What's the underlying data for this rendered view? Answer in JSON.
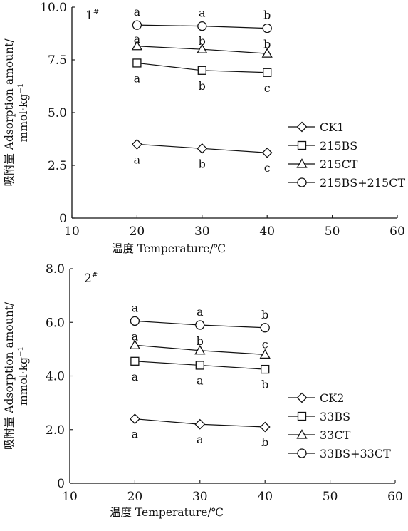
{
  "chart_data": [
    {
      "type": "line",
      "panel_label": "1",
      "panel_sup": "#",
      "xlabel": "温度 Temperature/℃",
      "ylabel_line1": "吸附量 Adsorption amount/",
      "ylabel_line2_base": "mmol·kg",
      "ylabel_line2_sup": "−1",
      "xlim": [
        10,
        60
      ],
      "ylim": [
        0,
        10
      ],
      "xticks": [
        10,
        20,
        30,
        40,
        50,
        60
      ],
      "xtick_labels": [
        "10",
        "20",
        "30",
        "40",
        "50",
        "60"
      ],
      "yticks": [
        0,
        2.5,
        5,
        7.5,
        10
      ],
      "ytick_labels": [
        "0",
        "2.5",
        "5.0",
        "7.5",
        "10.0"
      ],
      "x": [
        20,
        30,
        40
      ],
      "series": [
        {
          "name": "CK1",
          "marker": "diamond",
          "values": [
            3.5,
            3.3,
            3.1
          ],
          "letters": [
            "a",
            "b",
            "c"
          ],
          "letter_pos": "below"
        },
        {
          "name": "215BS",
          "marker": "square",
          "values": [
            7.35,
            7.0,
            6.9
          ],
          "letters": [
            "a",
            "b",
            "c"
          ],
          "letter_pos": "below"
        },
        {
          "name": "215CT",
          "marker": "triangle",
          "values": [
            8.15,
            8.0,
            7.8
          ],
          "letters": [
            "a",
            "b",
            "b"
          ],
          "letter_pos": "between"
        },
        {
          "name": "215BS+215CT",
          "marker": "circle",
          "values": [
            9.15,
            9.1,
            9.0
          ],
          "letters": [
            "a",
            "a",
            "b"
          ],
          "letter_pos": "above"
        }
      ],
      "legend_position": "right"
    },
    {
      "type": "line",
      "panel_label": "2",
      "panel_sup": "#",
      "xlabel": "温度 Temperature/℃",
      "ylabel_line1": "吸附量 Adsorption amount/",
      "ylabel_line2_base": "mmol·kg",
      "ylabel_line2_sup": "−1",
      "xlim": [
        10,
        60
      ],
      "ylim": [
        0,
        8
      ],
      "xticks": [
        10,
        20,
        30,
        40,
        50,
        60
      ],
      "xtick_labels": [
        "10",
        "20",
        "30",
        "40",
        "50",
        "60"
      ],
      "yticks": [
        0,
        2,
        4,
        6,
        8
      ],
      "ytick_labels": [
        "0",
        "2.0",
        "4.0",
        "6.0",
        "8.0"
      ],
      "x": [
        20,
        30,
        40
      ],
      "series": [
        {
          "name": "CK2",
          "marker": "diamond",
          "values": [
            2.4,
            2.2,
            2.1
          ],
          "letters": [
            "a",
            "a",
            "b"
          ],
          "letter_pos": "below"
        },
        {
          "name": "33BS",
          "marker": "square",
          "values": [
            4.55,
            4.4,
            4.25
          ],
          "letters": [
            "a",
            "a",
            "b"
          ],
          "letter_pos": "below"
        },
        {
          "name": "33CT",
          "marker": "triangle",
          "values": [
            5.15,
            4.95,
            4.8
          ],
          "letters": [
            "a",
            "b",
            "c"
          ],
          "letter_pos": "between"
        },
        {
          "name": "33BS+33CT",
          "marker": "circle",
          "values": [
            6.05,
            5.9,
            5.8
          ],
          "letters": [
            "a",
            "a",
            "b"
          ],
          "letter_pos": "above"
        }
      ],
      "legend_position": "right"
    }
  ]
}
